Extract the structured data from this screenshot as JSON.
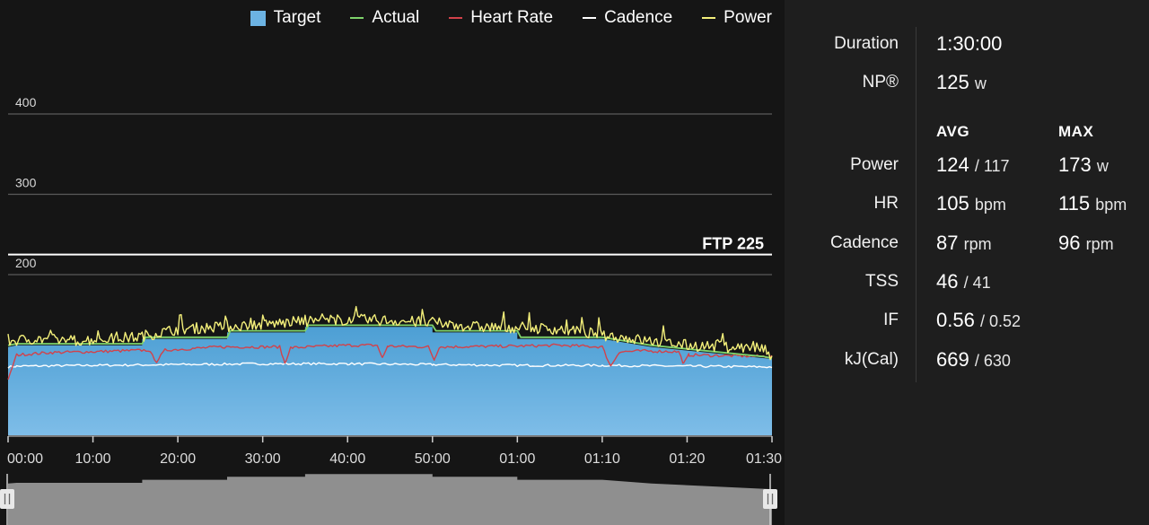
{
  "chart_data": {
    "type": "area",
    "legend": [
      {
        "name": "Target",
        "color": "#6cb3e3",
        "kind": "box"
      },
      {
        "name": "Actual",
        "color": "#7ed36b",
        "kind": "line"
      },
      {
        "name": "Heart Rate",
        "color": "#d2424a",
        "kind": "line"
      },
      {
        "name": "Cadence",
        "color": "#ffffff",
        "kind": "line"
      },
      {
        "name": "Power",
        "color": "#f3ef7a",
        "kind": "line"
      }
    ],
    "y_gridlines": [
      400,
      300,
      200
    ],
    "ylim": [
      0,
      420
    ],
    "ftp": {
      "label": "FTP 225",
      "value": 225
    },
    "x_range_min": [
      0,
      90
    ],
    "x_ticks": [
      "00:00",
      "10:00",
      "20:00",
      "30:00",
      "40:00",
      "50:00",
      "01:00",
      "01:10",
      "01:20",
      "01:30"
    ],
    "target_profile_min_watts": [
      [
        0,
        110
      ],
      [
        1,
        112
      ],
      [
        15.8,
        112
      ],
      [
        15.8,
        120
      ],
      [
        25.8,
        120
      ],
      [
        25.8,
        128
      ],
      [
        35,
        128
      ],
      [
        35,
        135
      ],
      [
        50,
        135
      ],
      [
        50,
        128
      ],
      [
        60,
        128
      ],
      [
        60,
        120
      ],
      [
        70,
        120
      ],
      [
        75.8,
        110
      ],
      [
        90,
        95
      ]
    ],
    "series": [
      {
        "name": "Actual",
        "points": [
          [
            0,
            112
          ],
          [
            1,
            114
          ],
          [
            15.8,
            114
          ],
          [
            16.2,
            122
          ],
          [
            25.8,
            122
          ],
          [
            26.2,
            130
          ],
          [
            35,
            130
          ],
          [
            35.4,
            137
          ],
          [
            50,
            137
          ],
          [
            50.4,
            130
          ],
          [
            60,
            130
          ],
          [
            60.4,
            122
          ],
          [
            70,
            122
          ],
          [
            75.8,
            112
          ],
          [
            89,
            98
          ],
          [
            90,
            96
          ]
        ]
      },
      {
        "name": "Heart Rate",
        "points": [
          [
            0,
            68
          ],
          [
            0.5,
            85
          ],
          [
            1,
            100
          ],
          [
            5,
            103
          ],
          [
            10,
            104
          ],
          [
            16.5,
            106
          ],
          [
            17.5,
            92
          ],
          [
            18.5,
            106
          ],
          [
            25,
            110
          ],
          [
            32,
            110
          ],
          [
            32.6,
            90
          ],
          [
            33.3,
            109
          ],
          [
            40,
            112
          ],
          [
            43.5,
            112
          ],
          [
            44.1,
            96
          ],
          [
            44.7,
            111
          ],
          [
            49.5,
            110
          ],
          [
            50.2,
            94
          ],
          [
            50.8,
            110
          ],
          [
            60,
            111
          ],
          [
            65,
            112
          ],
          [
            70,
            110
          ],
          [
            71,
            86
          ],
          [
            72,
            104
          ],
          [
            75,
            105
          ],
          [
            79,
            104
          ],
          [
            79.6,
            89
          ],
          [
            80.2,
            100
          ],
          [
            85,
            99
          ],
          [
            90,
            98
          ]
        ]
      },
      {
        "name": "Cadence",
        "points": [
          [
            0,
            85
          ],
          [
            1,
            86
          ],
          [
            10,
            87
          ],
          [
            20,
            88
          ],
          [
            30,
            89
          ],
          [
            40,
            89
          ],
          [
            50,
            88
          ],
          [
            60,
            87
          ],
          [
            70,
            87
          ],
          [
            80,
            86
          ],
          [
            90,
            85
          ]
        ]
      },
      {
        "name": "Power",
        "points": [
          [
            0,
            117
          ],
          [
            3,
            120
          ],
          [
            8,
            118
          ],
          [
            15,
            122
          ],
          [
            20,
            132
          ],
          [
            25,
            135
          ],
          [
            30,
            138
          ],
          [
            35,
            142
          ],
          [
            40,
            144
          ],
          [
            45,
            143
          ],
          [
            50,
            140
          ],
          [
            55,
            135
          ],
          [
            60,
            134
          ],
          [
            65,
            132
          ],
          [
            70,
            125
          ],
          [
            75,
            118
          ],
          [
            80,
            112
          ],
          [
            85,
            110
          ],
          [
            89,
            108
          ],
          [
            90,
            94
          ]
        ]
      }
    ]
  },
  "stats": {
    "duration": {
      "label": "Duration",
      "value": "1:30:00"
    },
    "np": {
      "label": "NP®",
      "value": "125",
      "unit": "w"
    },
    "headers": {
      "avg": "AVG",
      "max": "MAX"
    },
    "rows": [
      {
        "label": "Power",
        "avg": "124",
        "avg_unit": "/ 117",
        "max": "173",
        "max_unit": "w"
      },
      {
        "label": "HR",
        "avg": "105",
        "avg_unit": "bpm",
        "max": "115",
        "max_unit": "bpm"
      },
      {
        "label": "Cadence",
        "avg": "87",
        "avg_unit": "rpm",
        "max": "96",
        "max_unit": "rpm"
      },
      {
        "label": "TSS",
        "avg": "46",
        "avg_unit": "/ 41",
        "max": "",
        "max_unit": ""
      },
      {
        "label": "IF",
        "avg": "0.56",
        "avg_unit": "/ 0.52",
        "max": "",
        "max_unit": ""
      },
      {
        "label": "kJ(Cal)",
        "avg": "669",
        "avg_unit": "/ 630",
        "max": "",
        "max_unit": ""
      }
    ]
  }
}
